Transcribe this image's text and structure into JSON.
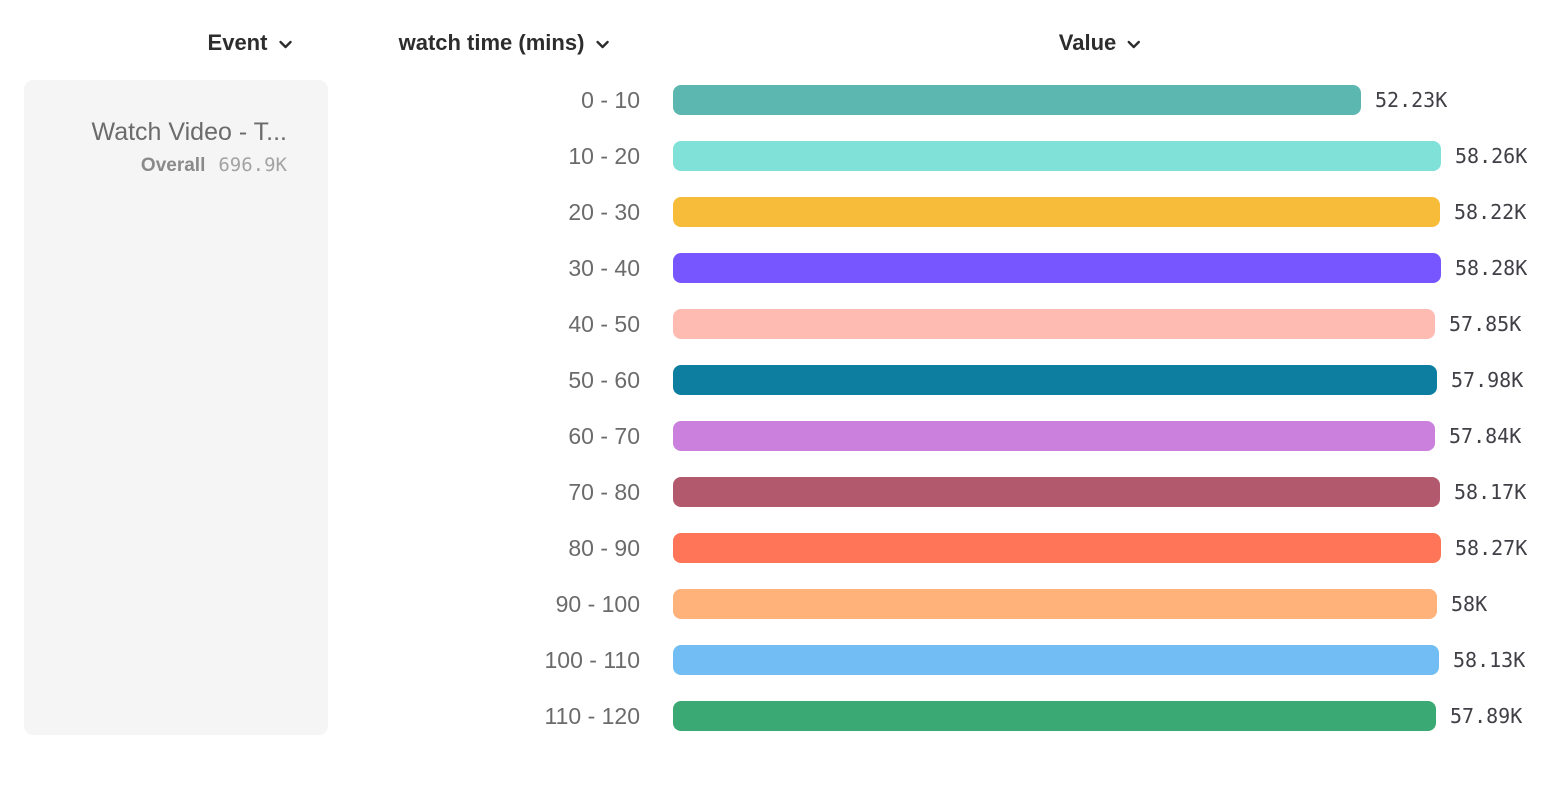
{
  "header": {
    "event_column": "Event",
    "breakdown_column": "watch time (mins)",
    "value_column": "Value"
  },
  "event_card": {
    "title": "Watch Video - T...",
    "overall_label": "Overall",
    "overall_value": "696.9K"
  },
  "chart_data": {
    "type": "bar",
    "orientation": "horizontal",
    "title": "",
    "xlabel": "Value",
    "ylabel": "watch time (mins)",
    "categories": [
      "0 - 10",
      "10 - 20",
      "20 - 30",
      "30 - 40",
      "40 - 50",
      "50 - 60",
      "60 - 70",
      "70 - 80",
      "80 - 90",
      "90 - 100",
      "100 - 110",
      "110 - 120"
    ],
    "values": [
      52230,
      58260,
      58220,
      58280,
      57850,
      57980,
      57840,
      58170,
      58270,
      58000,
      58130,
      57890
    ],
    "value_labels": [
      "52.23K",
      "58.26K",
      "58.22K",
      "58.28K",
      "57.85K",
      "57.98K",
      "57.84K",
      "58.17K",
      "58.27K",
      "58K",
      "58.13K",
      "57.89K"
    ],
    "bar_colors": [
      "#5BB7AF",
      "#80E1D9",
      "#F8BC3B",
      "#7856FF",
      "#FEBBB2",
      "#0D7EA0",
      "#CA80DC",
      "#B2596E",
      "#FF7557",
      "#FFB27A",
      "#72BEF4",
      "#3BA974"
    ],
    "xlim": [
      0,
      58280
    ],
    "grid": false,
    "legend_position": "none"
  },
  "colors": {
    "header_text": "#2d2d2d",
    "category_text": "#6b6b6b",
    "value_text": "#3f3f46",
    "card_bg": "#f5f5f5",
    "card_title_text": "#6b6b6b",
    "overall_label_text": "#8a8a8a",
    "overall_value_text": "#a3a3a3"
  }
}
